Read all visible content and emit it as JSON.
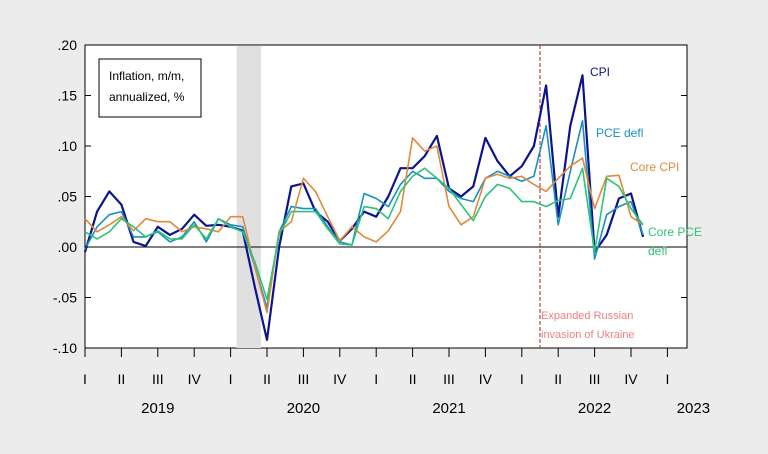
{
  "chart_data": {
    "type": "line",
    "legend_box": [
      "Inflation, m/m,",
      "annualized, %"
    ],
    "ylim": [
      -0.1,
      0.2
    ],
    "y_ticks": [
      ".20",
      ".15",
      ".10",
      ".05",
      ".00",
      "-.05",
      "-.10"
    ],
    "y_tick_values": [
      0.2,
      0.15,
      0.1,
      0.05,
      0.0,
      -0.05,
      -0.1
    ],
    "quarter_ticks": [
      "I",
      "II",
      "III",
      "IV",
      "I",
      "II",
      "III",
      "IV",
      "I",
      "II",
      "III",
      "IV",
      "I",
      "II",
      "III",
      "IV",
      "I"
    ],
    "years": [
      "2019",
      "2020",
      "2021",
      "2022",
      "2023"
    ],
    "recession_shade": {
      "start": "2020-02",
      "end": "2020-04"
    },
    "annotation": {
      "date": "2022-02",
      "text": [
        "Expanded Russian",
        "invasion of Ukraine"
      ]
    },
    "x": [
      "2019-01",
      "2019-02",
      "2019-03",
      "2019-04",
      "2019-05",
      "2019-06",
      "2019-07",
      "2019-08",
      "2019-09",
      "2019-10",
      "2019-11",
      "2019-12",
      "2020-01",
      "2020-02",
      "2020-03",
      "2020-04",
      "2020-05",
      "2020-06",
      "2020-07",
      "2020-08",
      "2020-09",
      "2020-10",
      "2020-11",
      "2020-12",
      "2021-01",
      "2021-02",
      "2021-03",
      "2021-04",
      "2021-05",
      "2021-06",
      "2021-07",
      "2021-08",
      "2021-09",
      "2021-10",
      "2021-11",
      "2021-12",
      "2022-01",
      "2022-02",
      "2022-03",
      "2022-04",
      "2022-05",
      "2022-06",
      "2022-07",
      "2022-08",
      "2022-09",
      "2022-10",
      "2022-11"
    ],
    "series": [
      {
        "name": "CPI",
        "color": "#0a148c",
        "values": [
          -0.005,
          0.035,
          0.055,
          0.042,
          0.005,
          0.001,
          0.02,
          0.012,
          0.018,
          0.032,
          0.021,
          0.022,
          0.02,
          0.016,
          -0.04,
          -0.092,
          0.0,
          0.06,
          0.063,
          0.035,
          0.025,
          0.006,
          0.018,
          0.035,
          0.03,
          0.05,
          0.078,
          0.078,
          0.09,
          0.11,
          0.058,
          0.05,
          0.06,
          0.108,
          0.085,
          0.07,
          0.08,
          0.1,
          0.16,
          0.03,
          0.12,
          0.17,
          -0.005,
          0.012,
          0.048,
          0.053,
          0.01
        ]
      },
      {
        "name": "PCE defl",
        "color": "#1a8fc2",
        "values": [
          -0.002,
          0.02,
          0.032,
          0.035,
          0.01,
          0.01,
          0.015,
          0.005,
          0.01,
          0.025,
          0.005,
          0.028,
          0.022,
          0.02,
          -0.02,
          -0.06,
          0.015,
          0.04,
          0.038,
          0.038,
          0.02,
          0.005,
          0.002,
          0.053,
          0.048,
          0.04,
          0.062,
          0.075,
          0.068,
          0.068,
          0.055,
          0.048,
          0.045,
          0.068,
          0.075,
          0.07,
          0.065,
          0.07,
          0.12,
          0.022,
          0.075,
          0.125,
          -0.012,
          0.032,
          0.04,
          0.045,
          0.012
        ]
      },
      {
        "name": "Core CPI",
        "color": "#e08a3c",
        "values": [
          0.028,
          0.015,
          0.022,
          0.03,
          0.016,
          0.028,
          0.025,
          0.025,
          0.015,
          0.02,
          0.018,
          0.015,
          0.03,
          0.03,
          -0.02,
          -0.065,
          0.015,
          0.025,
          0.068,
          0.055,
          0.03,
          0.006,
          0.02,
          0.01,
          0.005,
          0.016,
          0.035,
          0.108,
          0.095,
          0.1,
          0.04,
          0.022,
          0.03,
          0.068,
          0.072,
          0.068,
          0.07,
          0.062,
          0.055,
          0.068,
          0.08,
          0.088,
          0.038,
          0.07,
          0.071,
          0.03,
          0.022
        ]
      },
      {
        "name": "Core PCE defl",
        "color": "#2ec27a",
        "values": [
          0.015,
          0.008,
          0.015,
          0.028,
          0.02,
          0.01,
          0.016,
          0.008,
          0.008,
          0.022,
          0.008,
          0.028,
          0.02,
          0.015,
          -0.015,
          -0.052,
          0.012,
          0.035,
          0.035,
          0.035,
          0.018,
          0.003,
          0.002,
          0.04,
          0.038,
          0.028,
          0.055,
          0.07,
          0.078,
          0.068,
          0.058,
          0.042,
          0.026,
          0.05,
          0.062,
          0.058,
          0.045,
          0.045,
          0.04,
          0.046,
          0.048,
          0.078,
          -0.005,
          0.068,
          0.06,
          0.038,
          0.022
        ]
      }
    ],
    "series_labels": [
      {
        "text": "CPI",
        "color": "#0a148c"
      },
      {
        "text": "PCE defl",
        "color": "#1a8fc2"
      },
      {
        "text": "Core CPI",
        "color": "#e08a3c"
      },
      {
        "text": "Core PCE",
        "color": "#2ec27a"
      },
      {
        "text": "defl",
        "color": "#2ec27a"
      }
    ]
  }
}
